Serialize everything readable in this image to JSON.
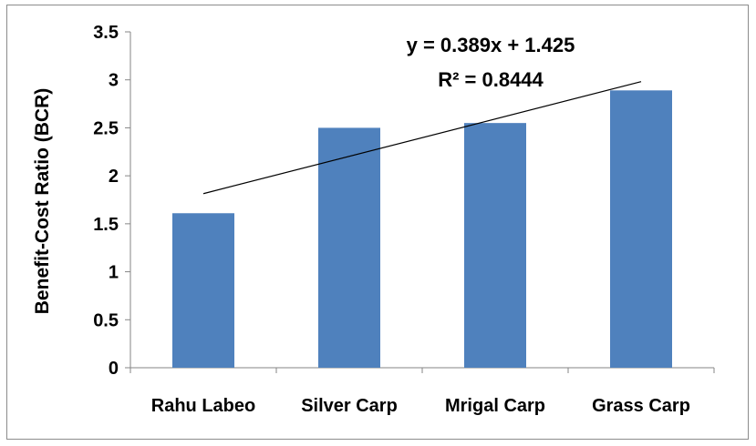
{
  "chart_data": {
    "type": "bar",
    "categories": [
      "Rahu Labeo",
      "Silver Carp",
      "Mrigal Carp",
      "Grass Carp"
    ],
    "values": [
      1.61,
      2.5,
      2.55,
      2.89
    ],
    "ylim": [
      0,
      3.5
    ],
    "yticks": [
      "0",
      "0.5",
      "1",
      "1.5",
      "2",
      "2.5",
      "3",
      "3.5"
    ],
    "ylabel": "Benefit-Cost Ratio (BCR)",
    "xlabel": "",
    "title": "",
    "grid": false,
    "legend": "none",
    "bar_color": "#4f81bd",
    "trendline": {
      "type": "linear",
      "slope": 0.389,
      "intercept": 1.425,
      "equation_text": "y = 0.389x + 1.425",
      "r2_text": "R² = 0.8444",
      "color": "#000000"
    }
  }
}
